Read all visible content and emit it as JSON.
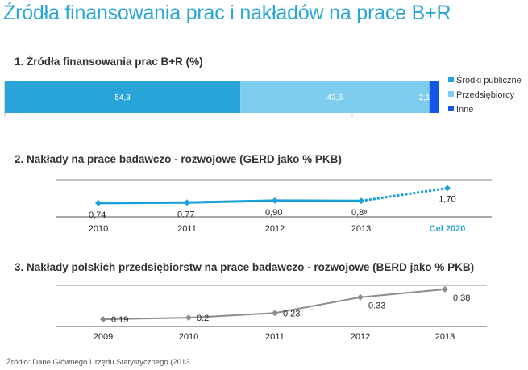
{
  "title": "Źródła finansowania prac i nakładów na prace B+R",
  "source": "Źródło: Dane Głównego Urzędu Statystycznego (2013",
  "colors": {
    "title": "#2aa6d6",
    "public": "#27a5d8",
    "business": "#7fcdee",
    "other": "#1557e6",
    "gerd_line": "#1aa0d8",
    "berd_line": "#8c8c8c"
  },
  "chart_data": [
    {
      "type": "bar",
      "title": "1. Źródła finansowania prac B+R (%)",
      "stacked": true,
      "orientation": "horizontal",
      "categories": [
        ""
      ],
      "series": [
        {
          "name": "Środki publiczne",
          "values": [
            54.3
          ],
          "label": "54,3"
        },
        {
          "name": "Przedsiębiorcy",
          "values": [
            43.6
          ],
          "label": "43,6"
        },
        {
          "name": "Inne",
          "values": [
            2.1
          ],
          "label": "2,1"
        }
      ],
      "legend": "right"
    },
    {
      "type": "line",
      "title": "2. Nakłady na prace badawczo - rozwojowe (GERD jako % PKB)",
      "x": [
        "2010",
        "2011",
        "2012",
        "2013",
        "Cel 2020"
      ],
      "values": [
        0.74,
        0.77,
        0.9,
        0.88,
        1.7
      ],
      "labels": [
        "0,74",
        "0,77",
        "0,90",
        "0,8⁸",
        "1,70"
      ],
      "target_segment_dashed": true,
      "ylim": [
        0,
        2.2
      ]
    },
    {
      "type": "line",
      "title": "3. Nakłady polskich przedsiębiorstw na prace badawczo - rozwojowe (BERD jako % PKB)",
      "x": [
        "2009",
        "2010",
        "2011",
        "2012",
        "2013"
      ],
      "values": [
        0.19,
        0.2,
        0.23,
        0.33,
        0.38
      ],
      "labels": [
        "0.19",
        "0.2",
        "0.23",
        "0.33",
        "0.38"
      ],
      "ylim": [
        0.16,
        0.4
      ]
    }
  ]
}
